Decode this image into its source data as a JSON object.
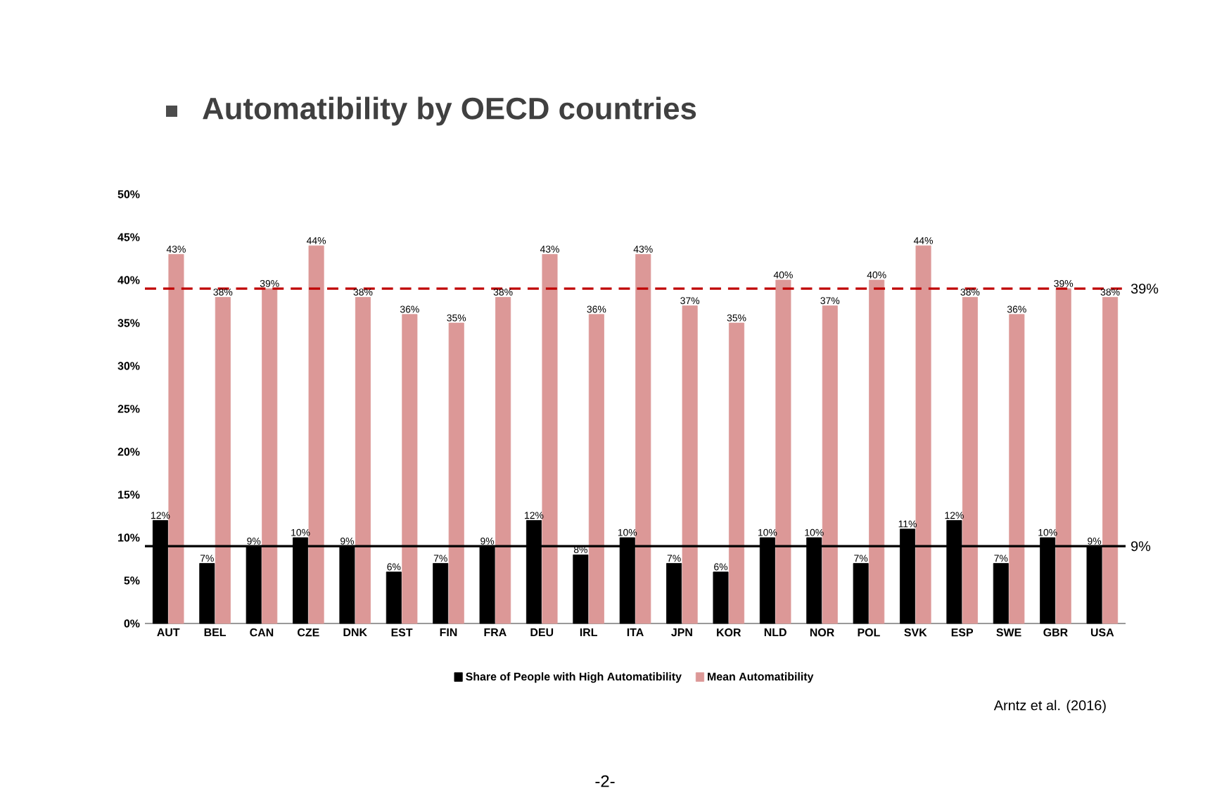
{
  "chart_data": {
    "type": "bar",
    "title": "Automatibility by OECD countries",
    "categories": [
      "AUT",
      "BEL",
      "CAN",
      "CZE",
      "DNK",
      "EST",
      "FIN",
      "FRA",
      "DEU",
      "IRL",
      "ITA",
      "JPN",
      "KOR",
      "NLD",
      "NOR",
      "POL",
      "SVK",
      "ESP",
      "SWE",
      "GBR",
      "USA"
    ],
    "series": [
      {
        "name": "Share of People with High Automatibility",
        "color": "#000000",
        "values": [
          12,
          7,
          9,
          10,
          9,
          6,
          7,
          9,
          12,
          8,
          10,
          7,
          6,
          10,
          10,
          7,
          11,
          12,
          7,
          10,
          9
        ],
        "value_labels": [
          "12%",
          "7%",
          "9%",
          "10%",
          "9%",
          "6%",
          "7%",
          "9%",
          "12%",
          "8%",
          "10%",
          "7%",
          "6%",
          "10%",
          "10%",
          "7%",
          "11%",
          "12%",
          "7%",
          "10%",
          "9%"
        ]
      },
      {
        "name": "Mean Automatibility",
        "color": "#dc9897",
        "values": [
          43,
          38,
          39,
          44,
          38,
          36,
          35,
          38,
          43,
          36,
          43,
          37,
          35,
          40,
          37,
          40,
          44,
          38,
          36,
          39,
          38
        ],
        "value_labels": [
          "43%",
          "38%",
          "39%",
          "44%",
          "38%",
          "36%",
          "35%",
          "38%",
          "43%",
          "36%",
          "43%",
          "37%",
          "35%",
          "40%",
          "37%",
          "40%",
          "44%",
          "38%",
          "36%",
          "39%",
          "38%"
        ]
      }
    ],
    "ylim": [
      0,
      50
    ],
    "yticks": [
      {
        "value": 0,
        "label": "0%"
      },
      {
        "value": 5,
        "label": "5%"
      },
      {
        "value": 10,
        "label": "10%"
      },
      {
        "value": 15,
        "label": "15%"
      },
      {
        "value": 20,
        "label": "20%"
      },
      {
        "value": 25,
        "label": "25%"
      },
      {
        "value": 30,
        "label": "30%"
      },
      {
        "value": 35,
        "label": "35%"
      },
      {
        "value": 40,
        "label": "40%"
      },
      {
        "value": 45,
        "label": "45%"
      },
      {
        "value": 50,
        "label": "50%"
      }
    ],
    "ref_lines": [
      {
        "axis": "y",
        "value": 39,
        "label": "39%",
        "color": "#c00000",
        "line_style": "dashed"
      },
      {
        "axis": "y",
        "value": 9,
        "label": "9%",
        "color": "#000000",
        "line_style": "solid"
      }
    ],
    "legend": "bottom",
    "grid": false,
    "annotations": [
      "Arntz et al. (2016)",
      "-2-"
    ]
  }
}
